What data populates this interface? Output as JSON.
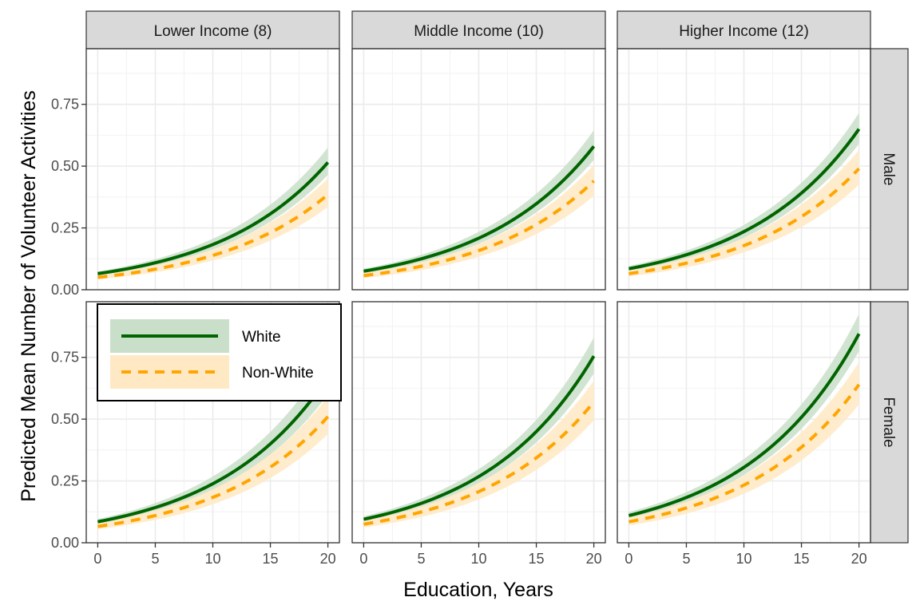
{
  "chart_data": {
    "type": "line",
    "title": "",
    "xlabel": "Education, Years",
    "ylabel": "Predicted Mean Number of Volunteer Activities",
    "xlim": [
      -1,
      21
    ],
    "ylim": [
      0,
      0.975
    ],
    "x_ticks": [
      0,
      5,
      10,
      15,
      20
    ],
    "x_tick_labels": [
      "0",
      "5",
      "10",
      "15",
      "20"
    ],
    "y_ticks": [
      0,
      0.25,
      0.5,
      0.75
    ],
    "y_tick_labels": [
      "0.00",
      "0.25",
      "0.50",
      "0.75"
    ],
    "grid": true,
    "columns": [
      "Lower Income (8)",
      "Middle Income (10)",
      "Higher Income (12)"
    ],
    "rows": [
      "Male",
      "Female"
    ],
    "legend": {
      "placement": "inside-bottom-left-panel",
      "entries": [
        "White",
        "Non-White"
      ]
    },
    "colors": {
      "White": "#006400",
      "Non-White": "#FFA500",
      "White_band": "#c9dfc9",
      "Non-White_band": "#ffe9c4"
    },
    "panels": [
      {
        "row": "Male",
        "col": "Lower Income (8)",
        "series": [
          {
            "name": "White",
            "y0": 0.065,
            "y20": 0.515,
            "lo0": 0.057,
            "lo20": 0.465,
            "hi0": 0.074,
            "hi20": 0.575
          },
          {
            "name": "Non-White",
            "y0": 0.05,
            "y20": 0.385,
            "lo0": 0.042,
            "lo20": 0.335,
            "hi0": 0.06,
            "hi20": 0.45
          }
        ]
      },
      {
        "row": "Male",
        "col": "Middle Income (10)",
        "series": [
          {
            "name": "White",
            "y0": 0.075,
            "y20": 0.58,
            "lo0": 0.066,
            "lo20": 0.525,
            "hi0": 0.085,
            "hi20": 0.645
          },
          {
            "name": "Non-White",
            "y0": 0.057,
            "y20": 0.44,
            "lo0": 0.047,
            "lo20": 0.38,
            "hi0": 0.068,
            "hi20": 0.505
          }
        ]
      },
      {
        "row": "Male",
        "col": "Higher Income (12)",
        "series": [
          {
            "name": "White",
            "y0": 0.085,
            "y20": 0.65,
            "lo0": 0.075,
            "lo20": 0.59,
            "hi0": 0.096,
            "hi20": 0.715
          },
          {
            "name": "Non-White",
            "y0": 0.065,
            "y20": 0.49,
            "lo0": 0.054,
            "lo20": 0.425,
            "hi0": 0.078,
            "hi20": 0.565
          }
        ]
      },
      {
        "row": "Female",
        "col": "Lower Income (8)",
        "series": [
          {
            "name": "White",
            "y0": 0.085,
            "y20": 0.67,
            "lo0": 0.075,
            "lo20": 0.6,
            "hi0": 0.096,
            "hi20": 0.75
          },
          {
            "name": "Non-White",
            "y0": 0.066,
            "y20": 0.51,
            "lo0": 0.055,
            "lo20": 0.44,
            "hi0": 0.08,
            "hi20": 0.59
          }
        ]
      },
      {
        "row": "Female",
        "col": "Middle Income (10)",
        "series": [
          {
            "name": "White",
            "y0": 0.095,
            "y20": 0.755,
            "lo0": 0.084,
            "lo20": 0.685,
            "hi0": 0.107,
            "hi20": 0.83
          },
          {
            "name": "Non-White",
            "y0": 0.075,
            "y20": 0.57,
            "lo0": 0.062,
            "lo20": 0.495,
            "hi0": 0.09,
            "hi20": 0.655
          }
        ]
      },
      {
        "row": "Female",
        "col": "Higher Income (12)",
        "series": [
          {
            "name": "White",
            "y0": 0.11,
            "y20": 0.845,
            "lo0": 0.097,
            "lo20": 0.775,
            "hi0": 0.124,
            "hi20": 0.925
          },
          {
            "name": "Non-White",
            "y0": 0.085,
            "y20": 0.64,
            "lo0": 0.07,
            "lo20": 0.56,
            "hi0": 0.102,
            "hi20": 0.73
          }
        ]
      }
    ]
  }
}
